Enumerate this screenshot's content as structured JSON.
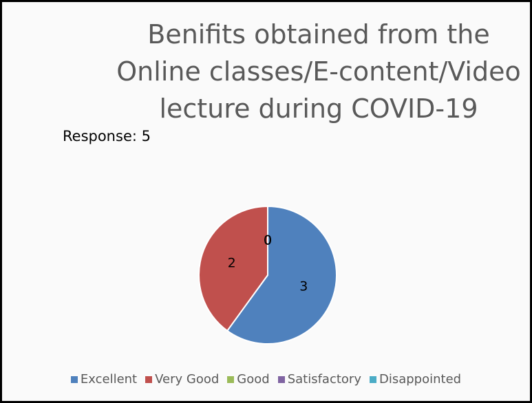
{
  "chart_data": {
    "type": "pie",
    "title": "Benifits obtained from the Online classes/E-content/Video lecture during COVID-19",
    "annotation": "Response: 5",
    "categories": [
      "Excellent",
      "Very Good",
      "Good",
      "Satisfactory",
      "Disappointed"
    ],
    "values": [
      3,
      2,
      0,
      0,
      0
    ],
    "colors": [
      "#4f81bd",
      "#c0504d",
      "#9bbb59",
      "#8064a2",
      "#4bacc6"
    ],
    "legend": "bottom"
  }
}
